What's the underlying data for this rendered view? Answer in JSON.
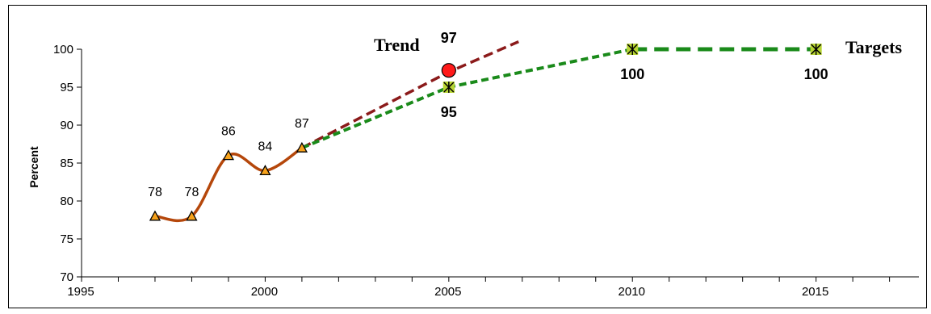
{
  "chart_data": {
    "type": "line",
    "title": "",
    "xlabel": "",
    "ylabel": "Percent",
    "xlim": [
      1995,
      2015
    ],
    "ylim": [
      70,
      100
    ],
    "x_ticks": [
      1995,
      2000,
      2005,
      2010,
      2015
    ],
    "y_ticks": [
      70,
      75,
      80,
      85,
      90,
      95,
      100
    ],
    "grid": false,
    "colors": {
      "actual": "#b5470b",
      "marker_fill": "#f7a21b",
      "trend": "#8b1a1a",
      "target": "#1a8a1a",
      "target_marker": "#b7d433",
      "trend_point": "#ff1a1a"
    },
    "series": [
      {
        "key": "actual",
        "points": [
          {
            "x": 1997,
            "y": 78,
            "label": "78"
          },
          {
            "x": 1998,
            "y": 78,
            "label": "78"
          },
          {
            "x": 1999,
            "y": 86,
            "label": "86"
          },
          {
            "x": 2000,
            "y": 84,
            "label": "84"
          },
          {
            "x": 2001,
            "y": 87,
            "label": "87"
          }
        ]
      },
      {
        "key": "trend",
        "name": "Trend",
        "points": [
          {
            "x": 2001,
            "y": 87
          },
          {
            "x": 2005,
            "y": 97,
            "label": "97"
          },
          {
            "x": 2006.9,
            "y": 101
          }
        ]
      },
      {
        "key": "targets",
        "name": "Targets",
        "points": [
          {
            "x": 2001,
            "y": 87
          },
          {
            "x": 2005,
            "y": 95,
            "label": "95"
          },
          {
            "x": 2010,
            "y": 100,
            "label": "100"
          },
          {
            "x": 2015,
            "y": 100,
            "label": "100"
          }
        ]
      }
    ]
  }
}
